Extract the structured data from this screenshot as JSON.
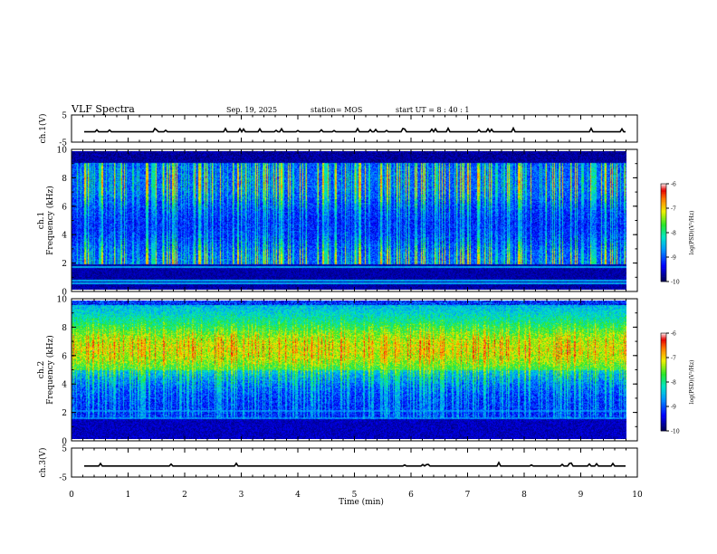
{
  "header": {
    "title": "VLF Spectra",
    "date": "Sep. 19, 2025",
    "station": "station= MOS",
    "start_ut": "start  UT =   8  : 40 : 1"
  },
  "chart_data": [
    {
      "type": "line",
      "name": "ch1-waveform",
      "ylabel": "ch.1(V)",
      "ylim": [
        -5,
        5
      ],
      "yticks": [
        "5",
        "-5"
      ],
      "xlim": [
        0,
        10
      ],
      "baseline": -1.2
    },
    {
      "type": "heatmap",
      "name": "ch1-spectrogram",
      "ylabel": "ch.1",
      "ylabel2": "Frequency (kHz)",
      "ylim": [
        0,
        10
      ],
      "yticks": [
        "0",
        "2",
        "4",
        "6",
        "8",
        "10"
      ],
      "xlim": [
        0,
        9.82
      ],
      "colorbar": {
        "label": "log(PSD)(V²/Hz)",
        "range": [
          -10,
          -6
        ],
        "ticks": [
          "-6",
          "-7",
          "-8",
          "-9",
          "-10"
        ]
      },
      "band_top_khz": 9.0,
      "emission_khz": [
        0.4,
        0.6,
        1.6
      ]
    },
    {
      "type": "heatmap",
      "name": "ch2-spectrogram",
      "ylabel": "ch.2",
      "ylabel2": "Frequency (kHz)",
      "ylim": [
        0,
        10
      ],
      "yticks": [
        "0",
        "2",
        "4",
        "6",
        "8",
        "10"
      ],
      "xlim": [
        0,
        9.82
      ],
      "colorbar": {
        "label": "log(PSD)(V²/Hz)",
        "range": [
          -10,
          -6
        ],
        "ticks": [
          "-6",
          "-7",
          "-8",
          "-9",
          "-10"
        ]
      },
      "band_peak_khz": 6.5,
      "emission_khz": [
        1.5,
        2.0
      ]
    },
    {
      "type": "line",
      "name": "ch3-waveform",
      "ylabel": "ch.3(V)",
      "ylim": [
        -5,
        5
      ],
      "yticks": [
        "5",
        "-5"
      ],
      "xlim": [
        0,
        10
      ],
      "baseline": -1.2
    }
  ],
  "xaxis": {
    "label": "Time  (min)",
    "ticks": [
      "0",
      "1",
      "2",
      "3",
      "4",
      "5",
      "6",
      "7",
      "8",
      "9",
      "10"
    ]
  }
}
